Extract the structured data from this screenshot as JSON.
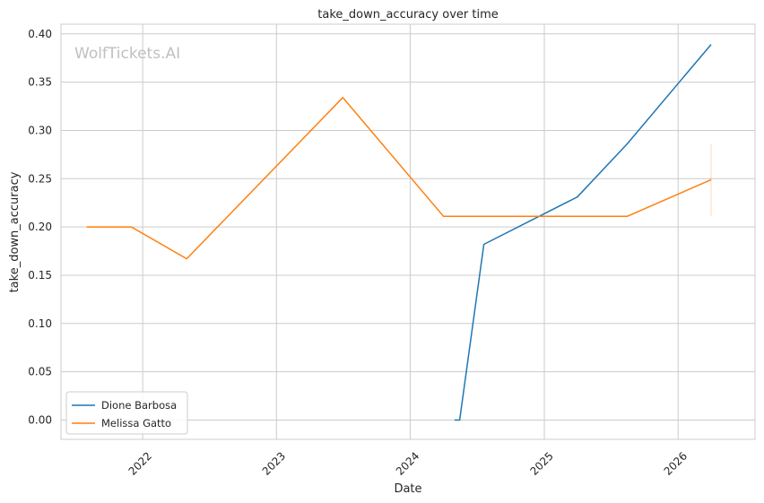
{
  "chart_data": {
    "type": "line",
    "title": "take_down_accuracy over time",
    "xlabel": "Date",
    "ylabel": "take_down_accuracy",
    "watermark": "WolfTickets.AI",
    "x_ticks": [
      "2022",
      "2023",
      "2024",
      "2025",
      "2026"
    ],
    "y_ticks": [
      "0.00",
      "0.05",
      "0.10",
      "0.15",
      "0.20",
      "0.25",
      "0.30",
      "0.35",
      "0.40"
    ],
    "xlim": [
      "2021-05-23",
      "2026-07-30"
    ],
    "ylim": [
      -0.02,
      0.41
    ],
    "grid": true,
    "legend_position": "bottom-left",
    "series": [
      {
        "name": "Dione Barbosa",
        "color": "#1f77b4",
        "points": [
          {
            "x": "2024-05-01",
            "y": 0.0
          },
          {
            "x": "2024-05-15",
            "y": 0.0
          },
          {
            "x": "2024-07-20",
            "y": 0.182
          },
          {
            "x": "2025-04-01",
            "y": 0.231
          },
          {
            "x": "2025-08-15",
            "y": 0.286
          },
          {
            "x": "2026-04-01",
            "y": 0.389
          }
        ]
      },
      {
        "name": "Melissa Gatto",
        "color": "#ff7f0e",
        "points": [
          {
            "x": "2021-08-01",
            "y": 0.2
          },
          {
            "x": "2021-12-01",
            "y": 0.2
          },
          {
            "x": "2022-05-01",
            "y": 0.167
          },
          {
            "x": "2023-07-01",
            "y": 0.334
          },
          {
            "x": "2024-04-01",
            "y": 0.211
          },
          {
            "x": "2025-08-15",
            "y": 0.211
          },
          {
            "x": "2026-04-01",
            "y": 0.249
          }
        ],
        "error_band": {
          "x": "2026-04-01",
          "low": 0.211,
          "high": 0.286
        }
      }
    ]
  }
}
